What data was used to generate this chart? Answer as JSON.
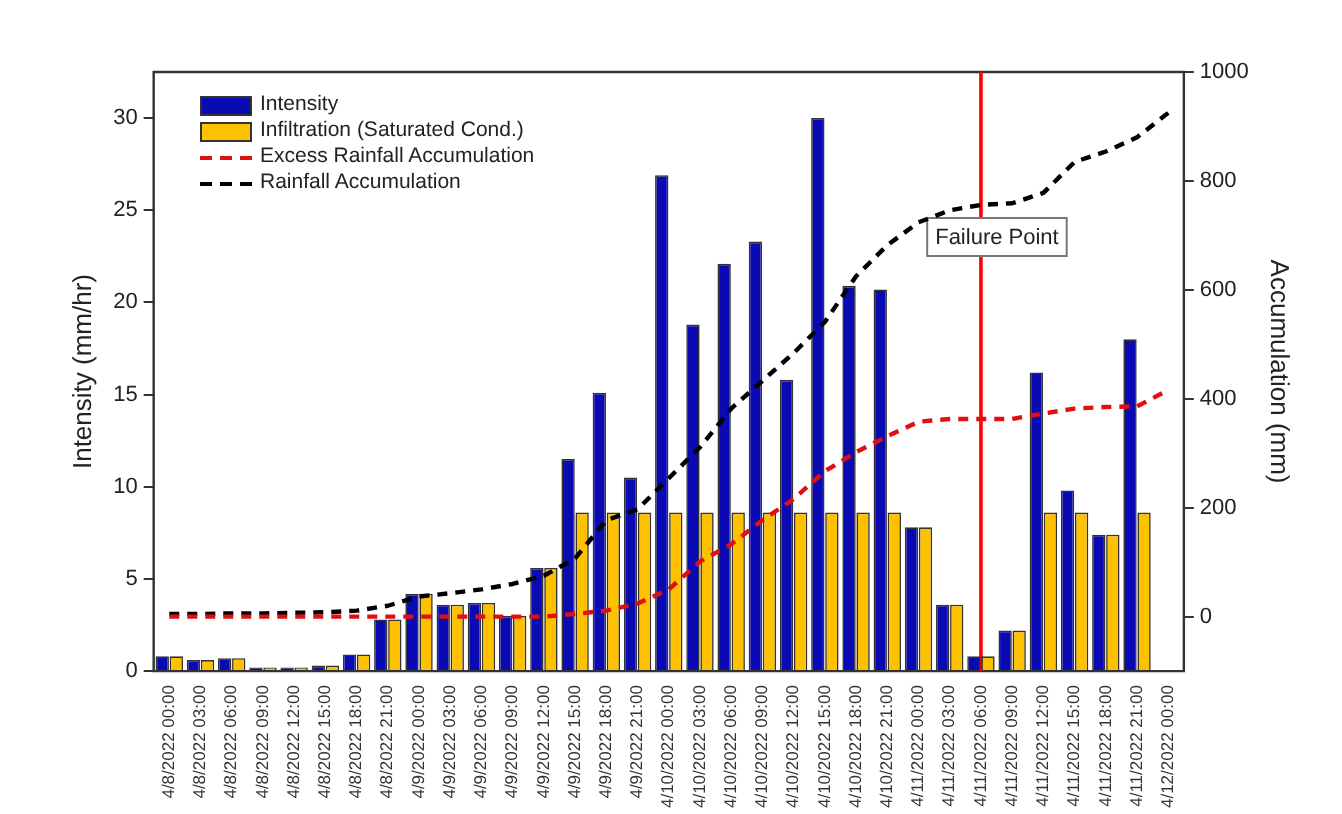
{
  "chart_data": {
    "type": "bar",
    "ylabel": "Intensity (mm/hr)",
    "y2label": "Accumulation (mm)",
    "categories": [
      "4/8/2022 00:00",
      "4/8/2022 03:00",
      "4/8/2022 06:00",
      "4/8/2022 09:00",
      "4/8/2022 12:00",
      "4/8/2022 15:00",
      "4/8/2022 18:00",
      "4/8/2022 21:00",
      "4/9/2022 00:00",
      "4/9/2022 03:00",
      "4/9/2022 06:00",
      "4/9/2022 09:00",
      "4/9/2022 12:00",
      "4/9/2022 15:00",
      "4/9/2022 18:00",
      "4/9/2022 21:00",
      "4/10/2022 00:00",
      "4/10/2022 03:00",
      "4/10/2022 06:00",
      "4/10/2022 09:00",
      "4/10/2022 12:00",
      "4/10/2022 15:00",
      "4/10/2022 18:00",
      "4/10/2022 21:00",
      "4/11/2022 00:00",
      "4/11/2022 03:00",
      "4/11/2022 06:00",
      "4/11/2022 09:00",
      "4/11/2022 12:00",
      "4/11/2022 15:00",
      "4/11/2022 18:00",
      "4/11/2022 21:00",
      "4/12/2022 00:00"
    ],
    "series": [
      {
        "name": "Intensity",
        "color": "#0a0ab4",
        "values": [
          0.8,
          0.6,
          0.7,
          0.2,
          0.2,
          0.3,
          0.9,
          2.8,
          4.2,
          3.6,
          3.7,
          3.0,
          5.6,
          11.5,
          15.1,
          10.5,
          26.9,
          18.8,
          22.1,
          23.3,
          15.8,
          30.0,
          20.9,
          20.7,
          7.8,
          3.6,
          0.8,
          2.2,
          16.2,
          9.8,
          7.4,
          18.0,
          null
        ]
      },
      {
        "name": "Infiltration (Saturated Cond.)",
        "color": "#ffc000",
        "values": [
          0.8,
          0.6,
          0.7,
          0.2,
          0.2,
          0.3,
          0.9,
          2.8,
          4.2,
          3.6,
          3.7,
          3.0,
          5.6,
          8.6,
          8.6,
          8.6,
          8.6,
          8.6,
          8.6,
          8.6,
          8.6,
          8.6,
          8.6,
          8.6,
          7.8,
          3.6,
          0.8,
          2.2,
          8.6,
          8.6,
          7.4,
          8.6,
          null
        ]
      },
      {
        "name": "Excess Rainfall Accumulation",
        "type": "line",
        "axis": "y2",
        "color": "#e01010",
        "line_style": "dashed",
        "values": [
          0,
          0,
          0,
          0,
          0,
          0,
          0,
          0,
          0,
          0,
          0,
          0,
          0,
          5,
          11,
          24,
          50,
          101,
          133,
          177,
          216,
          267,
          302,
          331,
          358,
          363,
          363,
          363,
          373,
          382,
          385,
          386,
          416
        ]
      },
      {
        "name": "Rainfall Accumulation",
        "type": "line",
        "axis": "y2",
        "color": "#000000",
        "line_style": "dashed",
        "values": [
          5,
          5,
          6,
          6,
          7,
          8,
          11,
          20,
          37,
          43,
          50,
          60,
          75,
          107,
          177,
          197,
          254,
          311,
          382,
          433,
          484,
          541,
          625,
          682,
          724,
          746,
          756,
          759,
          778,
          835,
          854,
          880,
          925
        ]
      }
    ],
    "ylim": [
      0,
      32.5
    ],
    "yticks": [
      0,
      5,
      10,
      15,
      20,
      25,
      30
    ],
    "y2lim": [
      -100,
      1000
    ],
    "y2ticks": [
      0,
      200,
      400,
      600,
      800,
      1000
    ],
    "ref_lines": [
      {
        "axis": "x",
        "value": "4/11/2022 06:00",
        "label": "Failure Point",
        "color": "#ff0000"
      }
    ],
    "marker": "none",
    "grid": false,
    "legend": "top left"
  }
}
